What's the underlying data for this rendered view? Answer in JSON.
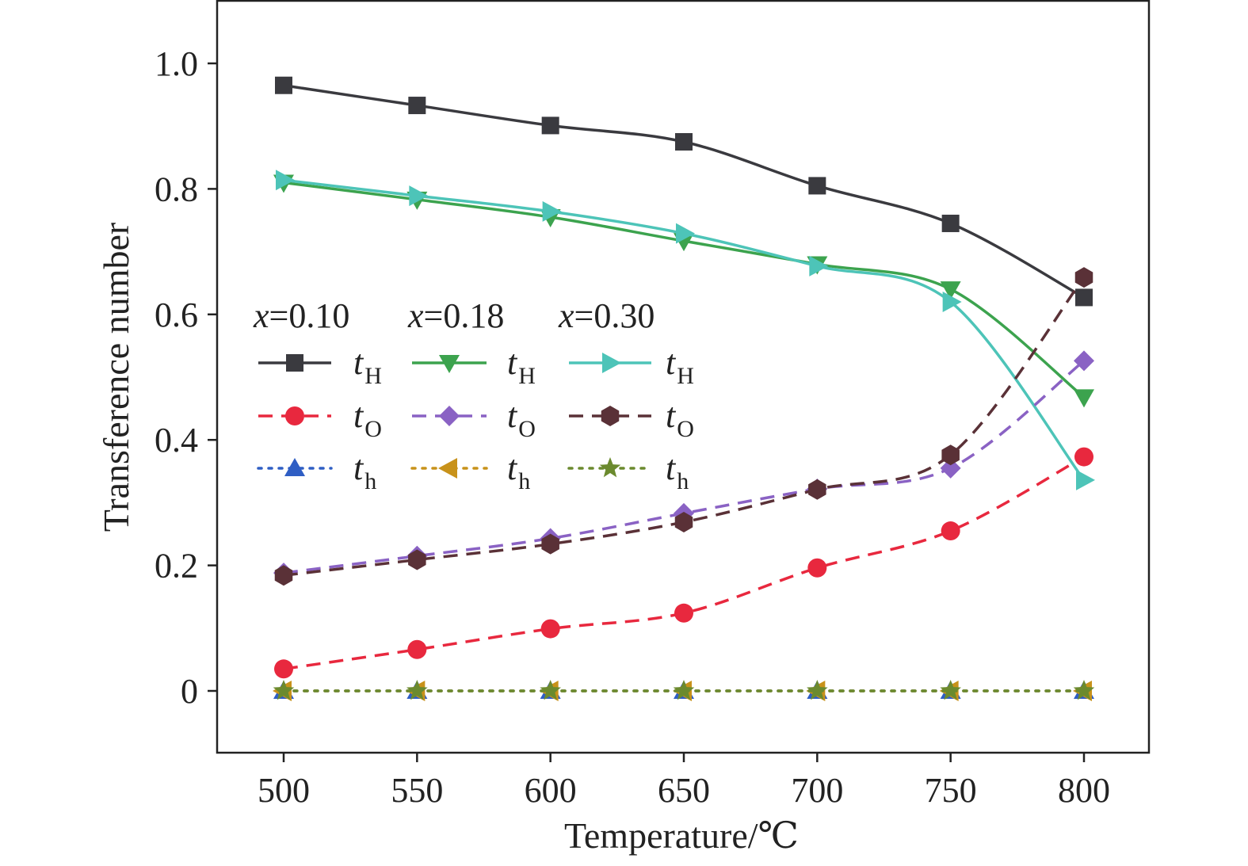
{
  "chart_data": {
    "type": "line",
    "xlabel": "Temperature/℃",
    "ylabel": "Transference number",
    "xlim": [
      475,
      830
    ],
    "ylim": [
      -0.1,
      1.1
    ],
    "x": [
      500,
      550,
      600,
      650,
      700,
      750,
      800
    ],
    "xticks": [
      "500",
      "550",
      "600",
      "650",
      "700",
      "750",
      "800"
    ],
    "yticks": [
      {
        "value": 0,
        "label": "0"
      },
      {
        "value": 0.2,
        "label": "0.2"
      },
      {
        "value": 0.4,
        "label": "0.4"
      },
      {
        "value": 0.6,
        "label": "0.6"
      },
      {
        "value": 0.8,
        "label": "0.8"
      },
      {
        "value": 1.0,
        "label": "1.0"
      }
    ],
    "grid": false,
    "legend_position": "left",
    "groups": [
      {
        "label_var": "x",
        "label_rest": "=0.10"
      },
      {
        "label_var": "x",
        "label_rest": "=0.18"
      },
      {
        "label_var": "x",
        "label_rest": "=0.30"
      }
    ],
    "series": [
      {
        "name": "tH",
        "symbol": "t",
        "sub": "H",
        "group": 0,
        "color": "#3a3a3f",
        "dash": "solid",
        "marker": "square",
        "values": [
          0.965,
          0.933,
          0.901,
          0.875,
          0.805,
          0.745,
          0.627
        ]
      },
      {
        "name": "tH",
        "symbol": "t",
        "sub": "H",
        "group": 1,
        "color": "#3ca34e",
        "dash": "solid",
        "marker": "triangle-down",
        "values": [
          0.81,
          0.783,
          0.755,
          0.717,
          0.68,
          0.64,
          0.468
        ]
      },
      {
        "name": "tH",
        "symbol": "t",
        "sub": "H",
        "group": 2,
        "color": "#4dc4b8",
        "dash": "solid",
        "marker": "triangle-right",
        "values": [
          0.814,
          0.789,
          0.764,
          0.729,
          0.677,
          0.62,
          0.336
        ]
      },
      {
        "name": "tO",
        "symbol": "t",
        "sub": "O",
        "group": 0,
        "color": "#e8283e",
        "dash": "dashed",
        "marker": "circle",
        "values": [
          0.035,
          0.066,
          0.099,
          0.124,
          0.196,
          0.255,
          0.373
        ]
      },
      {
        "name": "tO",
        "symbol": "t",
        "sub": "O",
        "group": 1,
        "color": "#8a62c4",
        "dash": "dashed",
        "marker": "diamond",
        "values": [
          0.188,
          0.215,
          0.243,
          0.283,
          0.322,
          0.355,
          0.526
        ]
      },
      {
        "name": "tO",
        "symbol": "t",
        "sub": "O",
        "group": 2,
        "color": "#5a3137",
        "dash": "dashed",
        "marker": "hexagon",
        "values": [
          0.184,
          0.209,
          0.234,
          0.269,
          0.321,
          0.376,
          0.659
        ]
      },
      {
        "name": "th",
        "symbol": "t",
        "sub": "h",
        "group": 0,
        "color": "#2f5ec4",
        "dash": "dotted",
        "marker": "triangle-up",
        "values": [
          0,
          0,
          0,
          0,
          0,
          0,
          0
        ]
      },
      {
        "name": "th",
        "symbol": "t",
        "sub": "h",
        "group": 1,
        "color": "#c8921a",
        "dash": "dotted",
        "marker": "triangle-left",
        "values": [
          0,
          0,
          0,
          0,
          0,
          0,
          0
        ]
      },
      {
        "name": "th",
        "symbol": "t",
        "sub": "h",
        "group": 2,
        "color": "#6b8a2e",
        "dash": "dotted",
        "marker": "star",
        "values": [
          0,
          0,
          0,
          0,
          0,
          0,
          0
        ]
      }
    ]
  }
}
